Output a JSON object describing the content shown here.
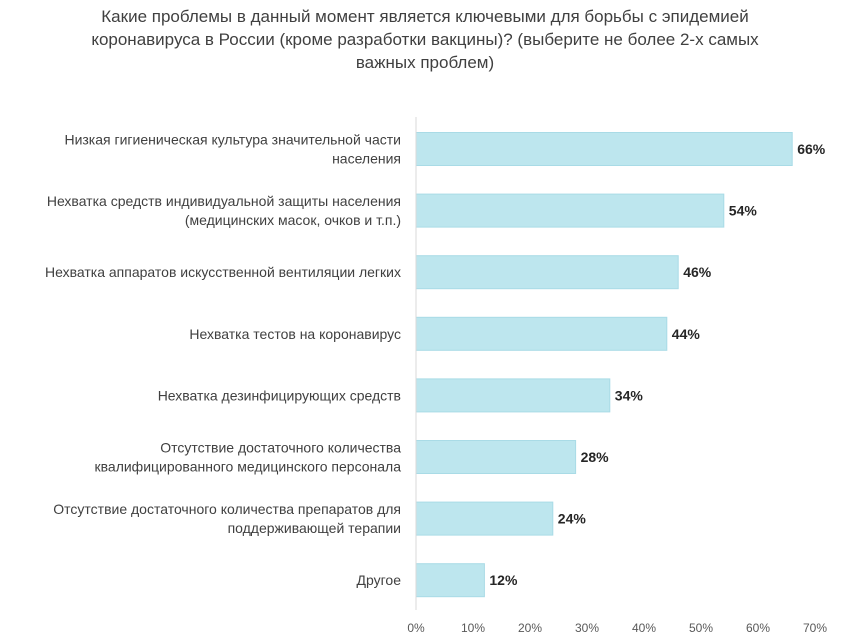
{
  "chart_data": {
    "type": "bar",
    "orientation": "horizontal",
    "title": "Какие проблемы в данный момент является ключевыми для борьбы с эпидемией коронавируса в России (кроме разработки вакцины)? (выберите не более 2-х самых важных проблем)",
    "categories": [
      [
        "Низкая гигиеническая культура значительной части",
        "населения"
      ],
      [
        "Нехватка средств индивидуальной защиты населения",
        "(медицинских масок, очков и т.п.)"
      ],
      [
        "Нехватка аппаратов искусственной вентиляции легких"
      ],
      [
        "Нехватка тестов на коронавирус"
      ],
      [
        "Нехватка дезинфицирующих средств"
      ],
      [
        "Отсутствие достаточного количества",
        "квалифицированного медицинского персонала"
      ],
      [
        "Отсутствие достаточного количества препаратов для",
        "поддерживающей терапии"
      ],
      [
        "Другое"
      ]
    ],
    "values": [
      66,
      54,
      46,
      44,
      34,
      28,
      24,
      12
    ],
    "value_labels": [
      "66%",
      "54%",
      "46%",
      "44%",
      "34%",
      "28%",
      "24%",
      "12%"
    ],
    "xlim": [
      0,
      70
    ],
    "xticks": [
      0,
      10,
      20,
      30,
      40,
      50,
      60,
      70
    ],
    "xtick_labels": [
      "0%",
      "10%",
      "20%",
      "30%",
      "40%",
      "50%",
      "60%",
      "70%"
    ],
    "xlabel": "",
    "ylabel": "",
    "grid": false,
    "legend": "none",
    "bar_color": "#bde6ee",
    "bar_edge_color": "#a9dbe6",
    "axis_color": "#d9d9d9"
  }
}
